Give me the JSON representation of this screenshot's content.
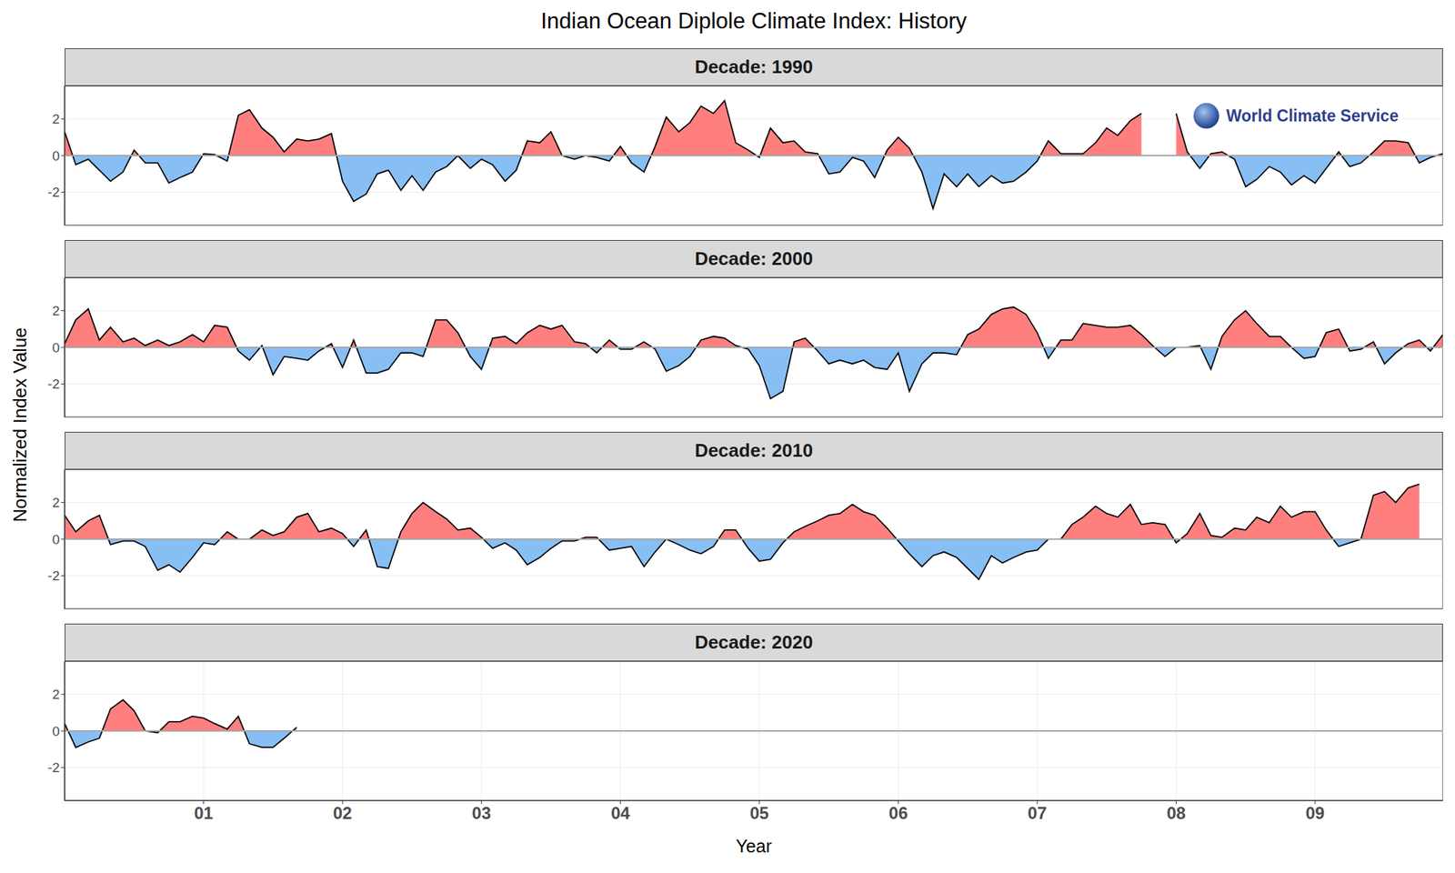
{
  "chart_data": {
    "type": "area",
    "title": "Indian Ocean Diplole Climate Index: History",
    "x_label": "Year",
    "y_label": "Normalized Index Value",
    "annotation": "World Climate Service",
    "grid": true,
    "colors": [
      "#ff7f7f",
      "#87bff5"
    ],
    "xlim": [
      0,
      9.92
    ],
    "xticks": [
      {
        "value": 1,
        "label": "01"
      },
      {
        "value": 2,
        "label": "02"
      },
      {
        "value": 3,
        "label": "03"
      },
      {
        "value": 4,
        "label": "04"
      },
      {
        "value": 5,
        "label": "05"
      },
      {
        "value": 6,
        "label": "06"
      },
      {
        "value": 7,
        "label": "07"
      },
      {
        "value": 8,
        "label": "08"
      },
      {
        "value": 9,
        "label": "09"
      }
    ],
    "ylim": [
      -3.8,
      3.8
    ],
    "yticks": [
      -2,
      0,
      2
    ],
    "x": [
      0,
      0.08,
      0.17,
      0.25,
      0.33,
      0.42,
      0.5,
      0.58,
      0.67,
      0.75,
      0.83,
      0.92,
      1,
      1.08,
      1.17,
      1.25,
      1.33,
      1.42,
      1.5,
      1.58,
      1.67,
      1.75,
      1.83,
      1.92,
      2,
      2.08,
      2.17,
      2.25,
      2.33,
      2.42,
      2.5,
      2.58,
      2.67,
      2.75,
      2.83,
      2.92,
      3,
      3.08,
      3.17,
      3.25,
      3.33,
      3.42,
      3.5,
      3.58,
      3.67,
      3.75,
      3.83,
      3.92,
      4,
      4.08,
      4.17,
      4.25,
      4.33,
      4.42,
      4.5,
      4.58,
      4.67,
      4.75,
      4.83,
      4.92,
      5,
      5.08,
      5.17,
      5.25,
      5.33,
      5.42,
      5.5,
      5.58,
      5.67,
      5.75,
      5.83,
      5.92,
      6,
      6.08,
      6.17,
      6.25,
      6.33,
      6.42,
      6.5,
      6.58,
      6.67,
      6.75,
      6.83,
      6.92,
      7,
      7.08,
      7.17,
      7.25,
      7.33,
      7.42,
      7.5,
      7.58,
      7.67,
      7.75,
      7.83,
      7.92,
      8,
      8.08,
      8.17,
      8.25,
      8.33,
      8.42,
      8.5,
      8.58,
      8.67,
      8.75,
      8.83,
      8.92,
      9,
      9.08,
      9.17,
      9.25,
      9.33,
      9.42,
      9.5,
      9.58,
      9.67,
      9.75,
      9.83,
      9.92
    ],
    "series": [
      {
        "name": "Decade: 1990",
        "color": "#000000",
        "values": [
          1.3,
          -0.5,
          -0.2,
          -0.8,
          -1.4,
          -0.9,
          0.3,
          -0.4,
          -0.4,
          -1.5,
          -1.2,
          -0.9,
          0.1,
          0.05,
          -0.3,
          2.2,
          2.5,
          1.5,
          1.0,
          0.2,
          0.9,
          0.8,
          0.9,
          1.2,
          -1.4,
          -2.5,
          -2.1,
          -1.0,
          -0.8,
          -1.9,
          -1.1,
          -1.9,
          -0.9,
          -0.6,
          0.0,
          -0.7,
          -0.2,
          -0.5,
          -1.4,
          -0.8,
          0.8,
          0.7,
          1.3,
          0.0,
          -0.2,
          0.0,
          -0.1,
          -0.3,
          0.5,
          -0.4,
          -0.9,
          0.5,
          2.1,
          1.3,
          1.8,
          2.7,
          2.3,
          3.0,
          0.7,
          0.3,
          -0.1,
          1.5,
          0.7,
          0.8,
          0.2,
          0.1,
          -1.0,
          -0.9,
          -0.1,
          -0.3,
          -1.2,
          0.3,
          1.0,
          0.4,
          -0.9,
          -2.9,
          -1.0,
          -1.7,
          -1.0,
          -1.7,
          -1.1,
          -1.5,
          -1.4,
          -0.9,
          -0.3,
          0.8,
          0.1,
          0.1,
          0.1,
          0.7,
          1.5,
          1.1,
          1.9,
          2.3,
          null,
          null,
          2.3,
          0.2,
          -0.7,
          0.1,
          0.2,
          -0.2,
          -1.7,
          -1.3,
          -0.6,
          -0.9,
          -1.6,
          -1.1,
          -1.5,
          -0.7,
          0.2,
          -0.6,
          -0.4,
          0.2,
          0.8,
          0.8,
          0.7,
          -0.4,
          -0.1,
          0.1
        ]
      },
      {
        "name": "Decade: 2000",
        "color": "#000000",
        "values": [
          0.2,
          1.5,
          2.1,
          0.4,
          1.1,
          0.3,
          0.5,
          0.1,
          0.4,
          0.1,
          0.3,
          0.7,
          0.3,
          1.2,
          1.1,
          -0.2,
          -0.7,
          0.1,
          -1.5,
          -0.5,
          -0.6,
          -0.7,
          -0.2,
          0.2,
          -1.1,
          0.4,
          -1.4,
          -1.4,
          -1.2,
          -0.3,
          -0.3,
          -0.5,
          1.5,
          1.5,
          0.8,
          -0.5,
          -1.2,
          0.5,
          0.6,
          0.2,
          0.8,
          1.2,
          1.0,
          1.2,
          0.3,
          0.2,
          -0.3,
          0.4,
          -0.1,
          -0.1,
          0.3,
          -0.1,
          -1.3,
          -1.0,
          -0.5,
          0.4,
          0.6,
          0.5,
          0.1,
          -0.1,
          -1.0,
          -2.8,
          -2.4,
          0.3,
          0.5,
          -0.2,
          -0.9,
          -0.7,
          -0.9,
          -0.7,
          -1.1,
          -1.2,
          -0.3,
          -2.4,
          -0.9,
          -0.3,
          -0.3,
          -0.4,
          0.7,
          1.0,
          1.8,
          2.1,
          2.2,
          1.8,
          0.8,
          -0.6,
          0.4,
          0.4,
          1.3,
          1.2,
          1.1,
          1.1,
          1.2,
          0.7,
          0.1,
          -0.5,
          0.0,
          0.0,
          0.1,
          -1.2,
          0.6,
          1.5,
          2.0,
          1.3,
          0.6,
          0.6,
          0.0,
          -0.6,
          -0.5,
          0.8,
          1.0,
          -0.2,
          -0.1,
          0.3,
          -0.9,
          -0.3,
          0.2,
          0.4,
          -0.2,
          0.7
        ]
      },
      {
        "name": "Decade: 2010",
        "color": "#000000",
        "values": [
          1.3,
          0.4,
          1.0,
          1.3,
          -0.3,
          -0.1,
          -0.1,
          -0.4,
          -1.7,
          -1.4,
          -1.8,
          -1.0,
          -0.2,
          -0.3,
          0.4,
          0.0,
          0.0,
          0.5,
          0.2,
          0.4,
          1.2,
          1.4,
          0.4,
          0.6,
          0.3,
          -0.4,
          0.5,
          -1.5,
          -1.6,
          0.4,
          1.4,
          2.0,
          1.5,
          1.1,
          0.5,
          0.6,
          0.1,
          -0.5,
          -0.2,
          -0.6,
          -1.4,
          -1.0,
          -0.5,
          -0.1,
          -0.1,
          0.1,
          0.1,
          -0.6,
          -0.5,
          -0.4,
          -1.5,
          -0.7,
          0.0,
          -0.3,
          -0.6,
          -0.8,
          -0.4,
          0.5,
          0.5,
          -0.5,
          -1.2,
          -1.1,
          -0.2,
          0.4,
          0.7,
          1.0,
          1.3,
          1.4,
          1.9,
          1.5,
          1.3,
          0.6,
          -0.1,
          -0.8,
          -1.5,
          -0.9,
          -0.7,
          -1.0,
          -1.6,
          -2.2,
          -0.9,
          -1.3,
          -1.0,
          -0.7,
          -0.6,
          0.0,
          0.0,
          0.8,
          1.2,
          1.8,
          1.4,
          1.2,
          1.9,
          0.8,
          0.9,
          0.8,
          -0.2,
          0.3,
          1.4,
          0.2,
          0.1,
          0.6,
          0.5,
          1.2,
          0.9,
          1.8,
          1.2,
          1.5,
          1.5,
          0.5,
          -0.4,
          -0.2,
          0.0,
          2.4,
          2.6,
          2.0,
          2.8,
          3.0,
          null,
          null
        ]
      },
      {
        "name": "Decade: 2020",
        "color": "#000000",
        "values": [
          0.4,
          -0.9,
          -0.6,
          -0.4,
          1.2,
          1.7,
          1.1,
          0.0,
          -0.1,
          0.5,
          0.5,
          0.8,
          0.7,
          0.4,
          0.1,
          0.8,
          -0.7,
          -0.9,
          -0.9,
          -0.4,
          0.2,
          null,
          null,
          null,
          null,
          null,
          null,
          null,
          null,
          null,
          null,
          null,
          null,
          null,
          null,
          null,
          null,
          null,
          null,
          null,
          null,
          null,
          null,
          null,
          null,
          null,
          null,
          null,
          null,
          null,
          null,
          null,
          null,
          null,
          null,
          null,
          null,
          null,
          null,
          null,
          null,
          null,
          null,
          null,
          null,
          null,
          null,
          null,
          null,
          null,
          null,
          null,
          null,
          null,
          null,
          null,
          null,
          null,
          null,
          null,
          null,
          null,
          null,
          null,
          null,
          null,
          null,
          null,
          null,
          null,
          null,
          null,
          null,
          null,
          null,
          null,
          null,
          null,
          null,
          null,
          null,
          null,
          null,
          null,
          null,
          null,
          null,
          null,
          null,
          null,
          null,
          null,
          null,
          null,
          null,
          null,
          null,
          null,
          null,
          null
        ]
      }
    ]
  }
}
